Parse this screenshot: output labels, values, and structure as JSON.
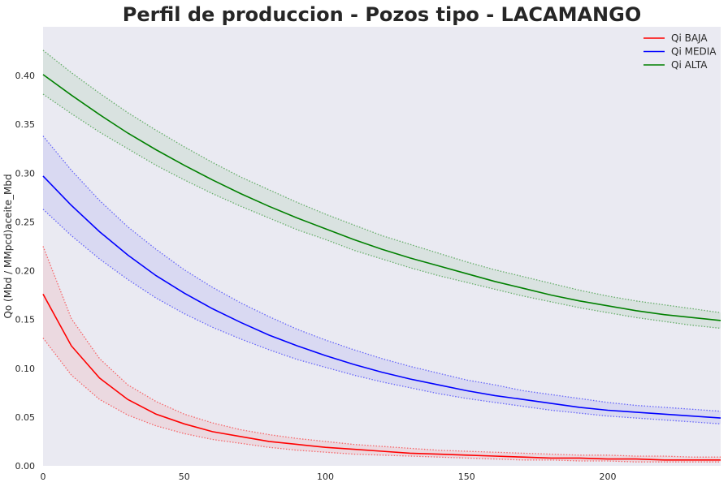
{
  "chart_data": {
    "type": "line",
    "title": "Perfil de produccion - Pozos tipo - LACAMANGO",
    "xlabel": "",
    "ylabel": "Qo (Mbd / MMpcd)aceite_Mbd",
    "xlim": [
      0,
      240
    ],
    "ylim": [
      0,
      0.45
    ],
    "x_ticks": [
      0,
      50,
      100,
      150,
      200
    ],
    "y_ticks": [
      0.0,
      0.05,
      0.1,
      0.15,
      0.2,
      0.25,
      0.3,
      0.35,
      0.4
    ],
    "grid": false,
    "background": "#eaeaf2",
    "legend_position": "top-right",
    "x": [
      0,
      10,
      20,
      30,
      40,
      50,
      60,
      70,
      80,
      90,
      100,
      110,
      120,
      130,
      140,
      150,
      160,
      170,
      180,
      190,
      200,
      210,
      220,
      230,
      240
    ],
    "series": [
      {
        "name": "Qi BAJA",
        "color": "#ff0000",
        "values": [
          0.176,
          0.123,
          0.09,
          0.068,
          0.053,
          0.043,
          0.035,
          0.03,
          0.025,
          0.022,
          0.019,
          0.017,
          0.015,
          0.013,
          0.012,
          0.011,
          0.01,
          0.009,
          0.008,
          0.008,
          0.007,
          0.007,
          0.006,
          0.006,
          0.006
        ],
        "upper": [
          0.225,
          0.151,
          0.11,
          0.083,
          0.066,
          0.053,
          0.044,
          0.037,
          0.032,
          0.028,
          0.025,
          0.022,
          0.02,
          0.018,
          0.016,
          0.015,
          0.014,
          0.013,
          0.012,
          0.011,
          0.011,
          0.01,
          0.01,
          0.009,
          0.009
        ],
        "lower": [
          0.131,
          0.093,
          0.068,
          0.052,
          0.041,
          0.033,
          0.027,
          0.023,
          0.019,
          0.016,
          0.014,
          0.012,
          0.011,
          0.01,
          0.009,
          0.008,
          0.007,
          0.006,
          0.006,
          0.005,
          0.005,
          0.004,
          0.004,
          0.004,
          0.004
        ]
      },
      {
        "name": "Qi MEDIA",
        "color": "#0000ff",
        "values": [
          0.297,
          0.267,
          0.24,
          0.216,
          0.195,
          0.177,
          0.161,
          0.147,
          0.134,
          0.123,
          0.113,
          0.104,
          0.096,
          0.089,
          0.083,
          0.077,
          0.072,
          0.068,
          0.064,
          0.06,
          0.057,
          0.055,
          0.053,
          0.051,
          0.049
        ],
        "upper": [
          0.338,
          0.303,
          0.272,
          0.245,
          0.222,
          0.201,
          0.183,
          0.167,
          0.153,
          0.14,
          0.129,
          0.119,
          0.11,
          0.102,
          0.095,
          0.088,
          0.083,
          0.077,
          0.073,
          0.069,
          0.065,
          0.062,
          0.06,
          0.058,
          0.056
        ],
        "lower": [
          0.263,
          0.236,
          0.212,
          0.191,
          0.172,
          0.156,
          0.142,
          0.13,
          0.119,
          0.109,
          0.101,
          0.093,
          0.086,
          0.08,
          0.074,
          0.069,
          0.065,
          0.061,
          0.057,
          0.054,
          0.051,
          0.049,
          0.047,
          0.045,
          0.043
        ]
      },
      {
        "name": "Qi ALTA",
        "color": "#008000",
        "values": [
          0.401,
          0.38,
          0.36,
          0.341,
          0.324,
          0.308,
          0.293,
          0.279,
          0.266,
          0.254,
          0.243,
          0.232,
          0.222,
          0.213,
          0.205,
          0.197,
          0.189,
          0.182,
          0.175,
          0.169,
          0.164,
          0.159,
          0.155,
          0.152,
          0.149
        ],
        "upper": [
          0.426,
          0.403,
          0.382,
          0.362,
          0.344,
          0.327,
          0.311,
          0.296,
          0.283,
          0.27,
          0.258,
          0.247,
          0.236,
          0.227,
          0.218,
          0.209,
          0.201,
          0.194,
          0.187,
          0.18,
          0.174,
          0.169,
          0.165,
          0.161,
          0.157
        ],
        "lower": [
          0.381,
          0.361,
          0.342,
          0.325,
          0.308,
          0.293,
          0.279,
          0.266,
          0.254,
          0.242,
          0.232,
          0.221,
          0.212,
          0.203,
          0.195,
          0.188,
          0.181,
          0.174,
          0.168,
          0.162,
          0.157,
          0.152,
          0.148,
          0.144,
          0.141
        ]
      }
    ]
  }
}
